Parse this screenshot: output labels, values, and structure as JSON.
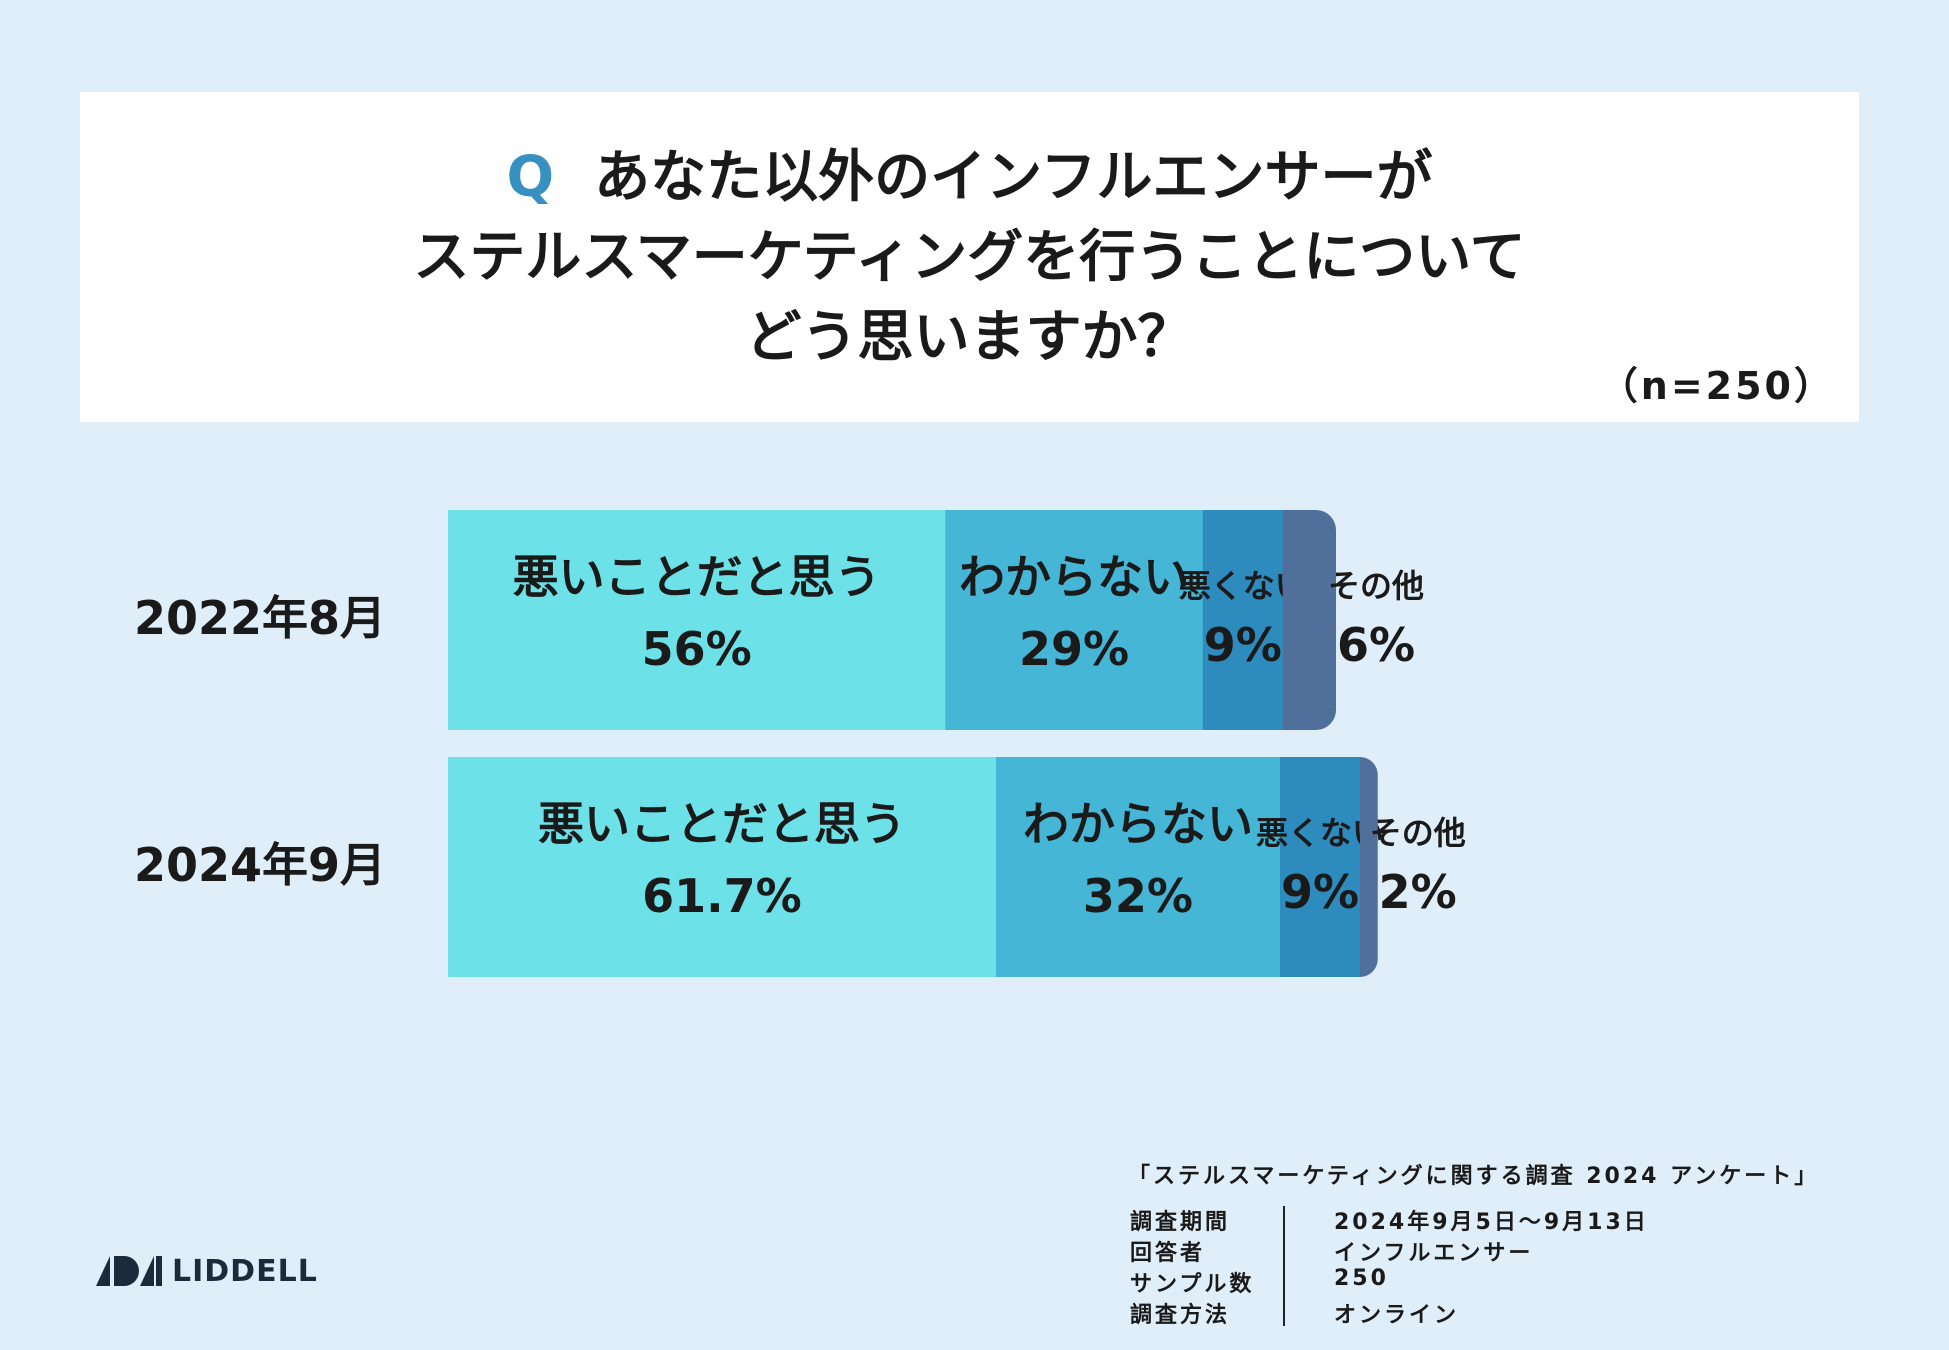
{
  "question": {
    "q_mark": "Q",
    "lines": [
      "あなた以外のインフルエンサーが",
      "ステルスマーケティングを行うことについて",
      "どう思いますか？"
    ],
    "sample_size": "（n=250）"
  },
  "chart_data": {
    "type": "bar",
    "orientation": "horizontal",
    "stacked": true,
    "categories": [
      "2022年8月",
      "2024年9月"
    ],
    "series": [
      {
        "name": "悪いことだと思う",
        "values": [
          56,
          61.7
        ],
        "labels": [
          "56%",
          "61.7%"
        ],
        "color": "#6ce2e8"
      },
      {
        "name": "わからない",
        "values": [
          29,
          32
        ],
        "labels": [
          "29%",
          "32%"
        ],
        "color": "#45b6d6"
      },
      {
        "name": "悪くない",
        "values": [
          9,
          9
        ],
        "labels": [
          "9%",
          "9%"
        ],
        "color": "#2e8bbd"
      },
      {
        "name": "その他",
        "values": [
          6,
          2
        ],
        "labels": [
          "6%",
          "2%"
        ],
        "color": "#506f9b"
      }
    ],
    "xlim": [
      0,
      100
    ]
  },
  "footer": {
    "survey_title": "「ステルスマーケティングに関する調査 2024 アンケート」",
    "meta": [
      {
        "key": "調査期間",
        "value": "2024年9月5日～9月13日"
      },
      {
        "key": "回答者",
        "value": "インフルエンサー"
      },
      {
        "key": "サンプル数",
        "value": "250"
      },
      {
        "key": "調査方法",
        "value": "オンライン"
      }
    ]
  },
  "brand": {
    "name": "LIDDELL"
  }
}
